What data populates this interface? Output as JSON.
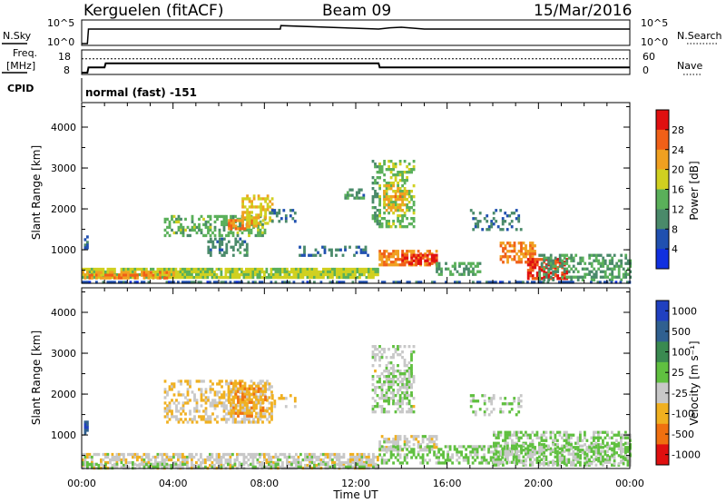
{
  "header": {
    "station": "Kerguelen (fitACF)",
    "beam": "Beam 09",
    "date": "15/Mar/2016"
  },
  "top_panels": {
    "nsky_label": "N.Sky",
    "nsky_ticks": [
      "10^5",
      "10^0"
    ],
    "nsearch_label": "N.Search",
    "nsearch_ticks": [
      "10^5",
      "10^0"
    ],
    "freq_label_1": "Freq.",
    "freq_label_2": "[MHz]",
    "freq_ticks": [
      "18",
      "8"
    ],
    "nave_label": "Nave",
    "nave_ticks": [
      "60",
      "0"
    ],
    "cpid_label": "CPID",
    "cpid_value": "normal (fast) -151"
  },
  "power_panel": {
    "ylabel": "Slant Range [km]",
    "yticks": [
      "4000",
      "3000",
      "2000",
      "1000"
    ],
    "colorbar_label": "Power [dB]",
    "colorbar_ticks": [
      "28",
      "24",
      "20",
      "16",
      "12",
      "8",
      "4"
    ],
    "colors": [
      "#1030e0",
      "#2050b0",
      "#4a8a6a",
      "#5ab05a",
      "#d0d020",
      "#f0a020",
      "#f06018",
      "#e01010"
    ]
  },
  "velocity_panel": {
    "ylabel": "Slant Range [km]",
    "yticks": [
      "4000",
      "3000",
      "2000",
      "1000"
    ],
    "colorbar_label": "Velocity [m s⁻¹]",
    "colorbar_ticks": [
      "1000",
      "500",
      "100",
      "25",
      "-25",
      "-100",
      "-500",
      "-1000"
    ],
    "colors": [
      "#2040c0",
      "#306090",
      "#3a8a50",
      "#60c040",
      "#c8c8c8",
      "#f0b020",
      "#f07010",
      "#e01010"
    ]
  },
  "x_axis": {
    "ticks": [
      "00:00",
      "04:00",
      "08:00",
      "12:00",
      "16:00",
      "20:00",
      "00:00"
    ],
    "label": "Time UT"
  },
  "chart_data": [
    {
      "type": "line",
      "title": "N.Sky / N.Search",
      "x_range": [
        "00:00",
        "24:00"
      ],
      "ylim": [
        "10^0",
        "10^5"
      ],
      "y_scale": "log",
      "series": [
        {
          "name": "N.Sky",
          "x": [
            0.0,
            0.25,
            0.3,
            8.7,
            8.72,
            13.0,
            13.5,
            14.0,
            15.0,
            24.0
          ],
          "y": [
            1,
            1,
            3000,
            3000,
            20000,
            3000,
            6000,
            8000,
            3000,
            3000
          ]
        }
      ]
    },
    {
      "type": "line",
      "title": "Freq. / Nave",
      "x_range": [
        "00:00",
        "24:00"
      ],
      "ylim_freq_mhz": [
        8,
        18
      ],
      "ylim_nave": [
        0,
        60
      ],
      "series": [
        {
          "name": "Freq.",
          "x": [
            0.0,
            0.25,
            0.3,
            1.0,
            1.05,
            13.0,
            13.05,
            24.0
          ],
          "y": [
            8,
            8,
            10.5,
            10.5,
            12.5,
            12.5,
            10.5,
            10.5
          ]
        },
        {
          "name": "Nave",
          "x": [
            0.0,
            24.0
          ],
          "y": [
            40,
            40
          ]
        }
      ]
    },
    {
      "type": "heatmap",
      "title": "Power [dB]",
      "x_range": [
        "00:00",
        "24:00"
      ],
      "ylim": [
        180,
        4600
      ],
      "value_range": [
        0,
        30
      ],
      "blobs": [
        {
          "t0": 0.0,
          "t1": 13.0,
          "r0": 300,
          "r1": 560,
          "v": 16,
          "density": 0.9
        },
        {
          "t0": 0.0,
          "t1": 4.0,
          "r0": 340,
          "r1": 480,
          "v": 22,
          "density": 0.55
        },
        {
          "t0": 0.1,
          "t1": 0.2,
          "r0": 1050,
          "r1": 1350,
          "v": 6,
          "density": 0.8
        },
        {
          "t0": 3.6,
          "t1": 8.0,
          "r0": 1350,
          "r1": 1850,
          "v": 13,
          "density": 0.45
        },
        {
          "t0": 5.5,
          "t1": 7.2,
          "r0": 900,
          "r1": 1300,
          "v": 9,
          "density": 0.4
        },
        {
          "t0": 6.4,
          "t1": 7.6,
          "r0": 1500,
          "r1": 1750,
          "v": 22,
          "density": 0.65
        },
        {
          "t0": 7.0,
          "t1": 8.3,
          "r0": 1650,
          "r1": 2350,
          "v": 18,
          "density": 0.5
        },
        {
          "t0": 8.2,
          "t1": 9.3,
          "r0": 1700,
          "r1": 2000,
          "v": 8,
          "density": 0.3
        },
        {
          "t0": 9.5,
          "t1": 12.5,
          "r0": 850,
          "r1": 1100,
          "v": 8,
          "density": 0.35
        },
        {
          "t0": 11.5,
          "t1": 12.3,
          "r0": 2300,
          "r1": 2500,
          "v": 10,
          "density": 0.6
        },
        {
          "t0": 12.7,
          "t1": 13.0,
          "r0": 1600,
          "r1": 3200,
          "v": 10,
          "density": 0.35
        },
        {
          "t0": 13.0,
          "t1": 14.5,
          "r0": 1600,
          "r1": 3200,
          "v": 14,
          "density": 0.45
        },
        {
          "t0": 13.2,
          "t1": 14.2,
          "r0": 2000,
          "r1": 2600,
          "v": 20,
          "density": 0.5
        },
        {
          "t0": 13.0,
          "t1": 15.5,
          "r0": 650,
          "r1": 1000,
          "v": 22,
          "density": 0.7
        },
        {
          "t0": 14.0,
          "t1": 15.5,
          "r0": 700,
          "r1": 900,
          "v": 27,
          "density": 0.7
        },
        {
          "t0": 15.5,
          "t1": 17.5,
          "r0": 400,
          "r1": 700,
          "v": 12,
          "density": 0.5
        },
        {
          "t0": 17.0,
          "t1": 19.2,
          "r0": 1500,
          "r1": 2000,
          "v": 8,
          "density": 0.3
        },
        {
          "t0": 18.3,
          "t1": 19.8,
          "r0": 700,
          "r1": 1200,
          "v": 22,
          "density": 0.6
        },
        {
          "t0": 19.5,
          "t1": 21.2,
          "r0": 300,
          "r1": 800,
          "v": 27,
          "density": 0.75
        },
        {
          "t0": 20.0,
          "t1": 24.0,
          "r0": 300,
          "r1": 900,
          "v": 11,
          "density": 0.5
        },
        {
          "t0": 0.0,
          "t1": 24.0,
          "r0": 190,
          "r1": 240,
          "v": 6,
          "density": 0.5
        }
      ]
    },
    {
      "type": "heatmap",
      "title": "Velocity [m s⁻¹]",
      "x_range": [
        "00:00",
        "24:00"
      ],
      "ylim": [
        180,
        4600
      ],
      "value_range": [
        -1000,
        1000
      ],
      "blobs": [
        {
          "t0": 0.0,
          "t1": 13.0,
          "r0": 200,
          "r1": 560,
          "v": -150,
          "density": 0.65
        },
        {
          "t0": 0.0,
          "t1": 13.0,
          "r0": 200,
          "r1": 320,
          "v": 0,
          "density": 0.45
        },
        {
          "t0": 0.1,
          "t1": 0.2,
          "r0": 1050,
          "r1": 1350,
          "v": 700,
          "density": 0.8
        },
        {
          "t0": 3.6,
          "t1": 8.3,
          "r0": 1300,
          "r1": 2350,
          "v": -250,
          "density": 0.45
        },
        {
          "t0": 6.4,
          "t1": 8.0,
          "r0": 1500,
          "r1": 2300,
          "v": -400,
          "density": 0.6
        },
        {
          "t0": 8.2,
          "t1": 9.3,
          "r0": 1700,
          "r1": 2000,
          "v": -200,
          "density": 0.3
        },
        {
          "t0": 12.7,
          "t1": 14.5,
          "r0": 1600,
          "r1": 3200,
          "v": -80,
          "density": 0.4
        },
        {
          "t0": 13.2,
          "t1": 14.4,
          "r0": 1800,
          "r1": 2600,
          "v": 0,
          "density": 0.45
        },
        {
          "t0": 13.0,
          "t1": 15.5,
          "r0": 650,
          "r1": 1000,
          "v": -150,
          "density": 0.6
        },
        {
          "t0": 13.0,
          "t1": 19.0,
          "r0": 350,
          "r1": 750,
          "v": 60,
          "density": 0.5
        },
        {
          "t0": 17.0,
          "t1": 19.2,
          "r0": 1500,
          "r1": 2000,
          "v": 0,
          "density": 0.3
        },
        {
          "t0": 18.0,
          "t1": 24.0,
          "r0": 300,
          "r1": 1100,
          "v": 0,
          "density": 0.55
        },
        {
          "t0": 19.0,
          "t1": 24.0,
          "r0": 300,
          "r1": 800,
          "v": 60,
          "density": 0.35
        }
      ]
    }
  ]
}
